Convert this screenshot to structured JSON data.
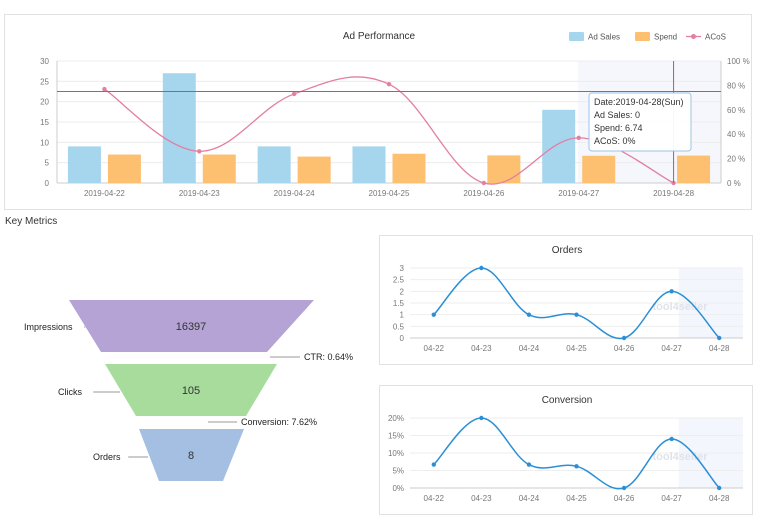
{
  "section_title": "Key Metrics",
  "chart_data": [
    {
      "type": "bar",
      "title": "Ad Performance",
      "categories": [
        "2019-04-22",
        "2019-04-23",
        "2019-04-24",
        "2019-04-25",
        "2019-04-26",
        "2019-04-27",
        "2019-04-28"
      ],
      "series": [
        {
          "name": "Ad Sales",
          "kind": "bar",
          "axis": "left",
          "color": "#a6d6ee",
          "values": [
            9,
            27,
            9,
            9,
            0,
            18,
            0
          ]
        },
        {
          "name": "Spend",
          "kind": "bar",
          "axis": "left",
          "color": "#fdc071",
          "values": [
            7,
            7,
            6.5,
            7.2,
            6.8,
            6.7,
            6.74
          ]
        },
        {
          "name": "ACoS",
          "kind": "line",
          "axis": "right",
          "color": "#e37fa0",
          "values": [
            77,
            26,
            73,
            81,
            0,
            37,
            0
          ]
        }
      ],
      "ylim_left": [
        0,
        30
      ],
      "ylim_right": [
        0,
        100
      ],
      "yticks_left": [
        "0",
        "5",
        "10",
        "15",
        "20",
        "25",
        "30"
      ],
      "yticks_right": [
        "0 %",
        "20 %",
        "40 %",
        "60 %",
        "80 %",
        "100 %"
      ],
      "legend_position": "top-right",
      "reference_line": {
        "axis": "left",
        "value": 22.5,
        "color": "#d94c4c"
      },
      "tooltip": {
        "date": "Date:2019-04-28(Sun)",
        "ad_sales": "Ad Sales: 0",
        "spend": "Spend: 6.74",
        "acos": "ACoS: 0%"
      }
    },
    {
      "type": "line",
      "title": "Orders",
      "categories": [
        "04-22",
        "04-23",
        "04-24",
        "04-25",
        "04-26",
        "04-27",
        "04-28"
      ],
      "values": [
        1,
        3,
        1,
        1,
        0,
        2,
        0
      ],
      "ylim": [
        0,
        3
      ],
      "yticks": [
        "0",
        "0.5",
        "1",
        "1.5",
        "2",
        "2.5",
        "3"
      ],
      "color": "#2b8fd6",
      "watermark": "tool4seller"
    },
    {
      "type": "line",
      "title": "Conversion",
      "categories": [
        "04-22",
        "04-23",
        "04-24",
        "04-25",
        "04-26",
        "04-27",
        "04-28"
      ],
      "values": [
        6.7,
        20,
        6.7,
        6.2,
        0,
        14,
        0
      ],
      "ylim": [
        0,
        20
      ],
      "yticks": [
        "0%",
        "5%",
        "10%",
        "15%",
        "20%"
      ],
      "color": "#2b8fd6",
      "watermark": "tool4seller"
    }
  ],
  "funnel": {
    "stages": [
      {
        "label": "Impressions",
        "value": "16397",
        "color": "#b4a3d4"
      },
      {
        "label": "Clicks",
        "value": "105",
        "color": "#a8dc9c"
      },
      {
        "label": "Orders",
        "value": "8",
        "color": "#a5bfe2"
      }
    ],
    "rates": [
      "CTR: 0.64%",
      "Conversion: 7.62%"
    ]
  }
}
